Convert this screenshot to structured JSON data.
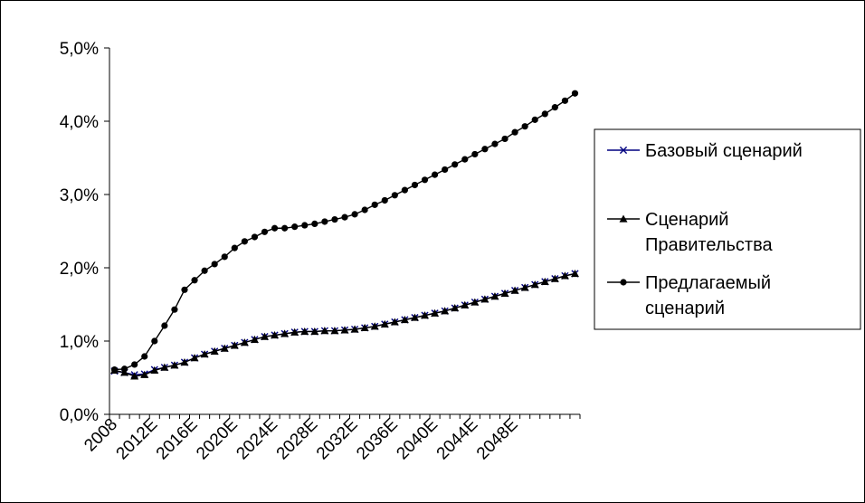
{
  "chart_data": {
    "type": "line",
    "ylim": [
      0,
      0.05
    ],
    "yticks": [
      "0,0%",
      "1,0%",
      "2,0%",
      "3,0%",
      "4,0%",
      "5,0%"
    ],
    "xticks": [
      "2008",
      "2012E",
      "2016E",
      "2020E",
      "2024E",
      "2028E",
      "2032E",
      "2036E",
      "2040E",
      "2044E",
      "2048E"
    ],
    "x_range": [
      2008,
      2050
    ],
    "legend_position": "right",
    "series": [
      {
        "name": "Базовый сценарий",
        "marker": "x",
        "color": "#000080",
        "values": [
          0.0059,
          0.0057,
          0.0054,
          0.0055,
          0.0061,
          0.0064,
          0.0067,
          0.0071,
          0.0077,
          0.0082,
          0.0086,
          0.009,
          0.0094,
          0.0098,
          0.0102,
          0.0106,
          0.0108,
          0.011,
          0.0112,
          0.0113,
          0.0113,
          0.0114,
          0.0114,
          0.0115,
          0.0116,
          0.0118,
          0.012,
          0.0123,
          0.0126,
          0.0129,
          0.0132,
          0.0135,
          0.0138,
          0.0141,
          0.0145,
          0.0149,
          0.0153,
          0.0157,
          0.0161,
          0.0165,
          0.0169,
          0.0173,
          0.0177,
          0.0181,
          0.0185,
          0.0189,
          0.0192
        ]
      },
      {
        "name": "Сценарий Правительства",
        "marker": "triangle",
        "color": "#000000",
        "values": [
          0.006,
          0.0057,
          0.0052,
          0.0054,
          0.006,
          0.0064,
          0.0067,
          0.0071,
          0.0077,
          0.0082,
          0.0086,
          0.009,
          0.0094,
          0.0098,
          0.0102,
          0.0106,
          0.0108,
          0.011,
          0.0112,
          0.0113,
          0.0113,
          0.0114,
          0.0114,
          0.0115,
          0.0116,
          0.0118,
          0.012,
          0.0123,
          0.0126,
          0.0129,
          0.0132,
          0.0135,
          0.0138,
          0.0141,
          0.0145,
          0.0149,
          0.0153,
          0.0157,
          0.0161,
          0.0165,
          0.0169,
          0.0173,
          0.0177,
          0.0181,
          0.0185,
          0.0189,
          0.0192
        ]
      },
      {
        "name": "Предлагаемый сценарий",
        "marker": "circle",
        "color": "#000000",
        "values": [
          0.0061,
          0.0062,
          0.0068,
          0.0079,
          0.01,
          0.0121,
          0.0143,
          0.017,
          0.0183,
          0.0196,
          0.0205,
          0.0215,
          0.0227,
          0.0236,
          0.0242,
          0.0249,
          0.0254,
          0.0254,
          0.0256,
          0.0258,
          0.026,
          0.0263,
          0.0266,
          0.0269,
          0.0273,
          0.0279,
          0.0286,
          0.0292,
          0.0299,
          0.0306,
          0.0313,
          0.032,
          0.0327,
          0.0334,
          0.0341,
          0.0348,
          0.0355,
          0.0362,
          0.0369,
          0.0376,
          0.0385,
          0.0393,
          0.0402,
          0.041,
          0.0419,
          0.0428,
          0.0438
        ]
      }
    ],
    "legend_labels": [
      {
        "lines": [
          "Базовый сценарий"
        ]
      },
      {
        "lines": [
          "Сценарий",
          "Правительства"
        ]
      },
      {
        "lines": [
          "Предлагаемый",
          "сценарий"
        ]
      }
    ]
  }
}
